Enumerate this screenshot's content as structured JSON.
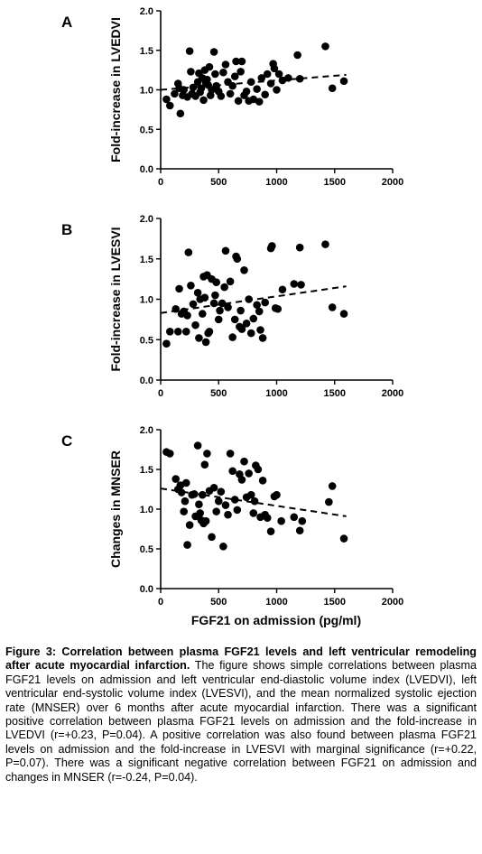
{
  "x_axis_label": "FGF21 on admission (pg/ml)",
  "caption": {
    "title": "Figure 3: Correlation between plasma FGF21 levels and left ventricular remodeling after acute myocardial infarction.",
    "body": " The figure shows simple correlations between plasma FGF21 levels on admission and left ventricular end-diastolic volume index (LVEDVI), left ventricular end-systolic volume index (LVESVI), and the mean normalized systolic ejection rate (MNSER) over 6 months after acute myocardial infarction. There was a significant positive correlation between plasma FGF21 levels on admission and the fold-increase in LVEDVI (r=+0.23, P=0.04).  A positive correlation was also found between plasma FGF21 levels on admission and the fold-increase in LVESVI with marginal significance (r=+0.22, P=0.07). There was a significant negative correlation between FGF21 on admission and changes in MNSER (r=-0.24, P=0.04)."
  },
  "chart_data": [
    {
      "type": "scatter",
      "panel": "A",
      "ylabel": "Fold-increase in LVEDVI",
      "xlim": [
        0,
        2000
      ],
      "ylim": [
        0,
        2.0
      ],
      "x_ticks": [
        "0",
        "500",
        "1000",
        "1500",
        "2000"
      ],
      "y_ticks": [
        "0.0",
        "0.5",
        "1.0",
        "1.5",
        "2.0"
      ],
      "trendline": {
        "style": "dashed",
        "from": [
          0,
          1.0
        ],
        "to": [
          1600,
          1.19
        ]
      },
      "points": [
        [
          50,
          0.88
        ],
        [
          80,
          0.8
        ],
        [
          120,
          0.95
        ],
        [
          150,
          1.08
        ],
        [
          160,
          1.02
        ],
        [
          170,
          0.7
        ],
        [
          190,
          0.93
        ],
        [
          200,
          1.0
        ],
        [
          230,
          0.91
        ],
        [
          250,
          1.49
        ],
        [
          260,
          1.23
        ],
        [
          270,
          0.95
        ],
        [
          280,
          1.03
        ],
        [
          300,
          0.92
        ],
        [
          320,
          1.1
        ],
        [
          330,
          1.21
        ],
        [
          340,
          0.97
        ],
        [
          350,
          1.02
        ],
        [
          360,
          1.15
        ],
        [
          370,
          0.87
        ],
        [
          380,
          1.25
        ],
        [
          390,
          1.09
        ],
        [
          400,
          1.13
        ],
        [
          410,
          1.06
        ],
        [
          420,
          1.29
        ],
        [
          430,
          0.93
        ],
        [
          440,
          1.0
        ],
        [
          460,
          1.48
        ],
        [
          470,
          1.2
        ],
        [
          480,
          1.05
        ],
        [
          500,
          0.98
        ],
        [
          520,
          0.92
        ],
        [
          540,
          1.22
        ],
        [
          560,
          1.32
        ],
        [
          580,
          1.1
        ],
        [
          600,
          0.95
        ],
        [
          620,
          1.05
        ],
        [
          640,
          1.17
        ],
        [
          650,
          1.36
        ],
        [
          670,
          0.86
        ],
        [
          690,
          1.23
        ],
        [
          700,
          1.36
        ],
        [
          720,
          0.93
        ],
        [
          740,
          0.98
        ],
        [
          760,
          0.86
        ],
        [
          780,
          1.1
        ],
        [
          800,
          0.88
        ],
        [
          830,
          1.01
        ],
        [
          850,
          0.85
        ],
        [
          870,
          1.15
        ],
        [
          900,
          0.94
        ],
        [
          920,
          1.2
        ],
        [
          950,
          1.08
        ],
        [
          970,
          1.33
        ],
        [
          980,
          1.27
        ],
        [
          1000,
          1.0
        ],
        [
          1020,
          1.2
        ],
        [
          1050,
          1.12
        ],
        [
          1100,
          1.15
        ],
        [
          1180,
          1.44
        ],
        [
          1200,
          1.14
        ],
        [
          1420,
          1.55
        ],
        [
          1480,
          1.02
        ],
        [
          1580,
          1.11
        ]
      ]
    },
    {
      "type": "scatter",
      "panel": "B",
      "ylabel": "Fold-increase in LVESVI",
      "xlim": [
        0,
        2000
      ],
      "ylim": [
        0,
        2.0
      ],
      "x_ticks": [
        "0",
        "500",
        "1000",
        "1500",
        "2000"
      ],
      "y_ticks": [
        "0.0",
        "0.5",
        "1.0",
        "1.5",
        "2.0"
      ],
      "trendline": {
        "style": "dashed",
        "from": [
          0,
          0.83
        ],
        "to": [
          1600,
          1.16
        ]
      },
      "points": [
        [
          50,
          0.45
        ],
        [
          80,
          0.6
        ],
        [
          130,
          0.88
        ],
        [
          150,
          0.6
        ],
        [
          160,
          1.13
        ],
        [
          180,
          0.82
        ],
        [
          200,
          0.85
        ],
        [
          220,
          0.6
        ],
        [
          230,
          0.8
        ],
        [
          240,
          1.58
        ],
        [
          260,
          1.17
        ],
        [
          280,
          0.94
        ],
        [
          300,
          0.68
        ],
        [
          320,
          1.08
        ],
        [
          330,
          0.52
        ],
        [
          340,
          1.0
        ],
        [
          360,
          0.82
        ],
        [
          370,
          1.28
        ],
        [
          380,
          1.02
        ],
        [
          390,
          0.47
        ],
        [
          400,
          1.3
        ],
        [
          410,
          0.58
        ],
        [
          420,
          0.6
        ],
        [
          440,
          1.25
        ],
        [
          460,
          0.95
        ],
        [
          470,
          1.05
        ],
        [
          480,
          1.21
        ],
        [
          500,
          0.75
        ],
        [
          510,
          0.86
        ],
        [
          530,
          0.95
        ],
        [
          550,
          1.15
        ],
        [
          560,
          1.6
        ],
        [
          580,
          0.9
        ],
        [
          600,
          1.22
        ],
        [
          620,
          0.53
        ],
        [
          640,
          0.75
        ],
        [
          650,
          1.53
        ],
        [
          660,
          1.5
        ],
        [
          680,
          0.66
        ],
        [
          690,
          0.86
        ],
        [
          700,
          0.63
        ],
        [
          720,
          1.36
        ],
        [
          740,
          0.7
        ],
        [
          760,
          1.0
        ],
        [
          780,
          0.58
        ],
        [
          800,
          0.76
        ],
        [
          830,
          0.93
        ],
        [
          850,
          0.85
        ],
        [
          860,
          0.62
        ],
        [
          880,
          0.52
        ],
        [
          900,
          0.96
        ],
        [
          950,
          1.63
        ],
        [
          960,
          1.66
        ],
        [
          990,
          0.89
        ],
        [
          1010,
          0.88
        ],
        [
          1050,
          1.12
        ],
        [
          1150,
          1.19
        ],
        [
          1200,
          1.64
        ],
        [
          1210,
          1.18
        ],
        [
          1420,
          1.68
        ],
        [
          1480,
          0.9
        ],
        [
          1580,
          0.82
        ]
      ]
    },
    {
      "type": "scatter",
      "panel": "C",
      "ylabel": "Changes in MNSER",
      "xlim": [
        0,
        2000
      ],
      "ylim": [
        0,
        2.0
      ],
      "x_ticks": [
        "0",
        "500",
        "1000",
        "1500",
        "2000"
      ],
      "y_ticks": [
        "0.0",
        "0.5",
        "1.0",
        "1.5",
        "2.0"
      ],
      "trendline": {
        "style": "dashed",
        "from": [
          0,
          1.26
        ],
        "to": [
          1600,
          0.91
        ]
      },
      "points": [
        [
          50,
          1.72
        ],
        [
          80,
          1.7
        ],
        [
          130,
          1.38
        ],
        [
          150,
          1.25
        ],
        [
          170,
          1.3
        ],
        [
          180,
          1.21
        ],
        [
          200,
          0.97
        ],
        [
          210,
          1.1
        ],
        [
          220,
          1.33
        ],
        [
          230,
          0.55
        ],
        [
          250,
          0.8
        ],
        [
          270,
          1.18
        ],
        [
          290,
          1.19
        ],
        [
          300,
          0.91
        ],
        [
          320,
          1.8
        ],
        [
          330,
          1.06
        ],
        [
          340,
          0.95
        ],
        [
          350,
          0.86
        ],
        [
          360,
          1.18
        ],
        [
          370,
          0.82
        ],
        [
          380,
          1.56
        ],
        [
          390,
          0.85
        ],
        [
          400,
          1.7
        ],
        [
          420,
          1.23
        ],
        [
          440,
          0.65
        ],
        [
          460,
          1.27
        ],
        [
          480,
          0.97
        ],
        [
          500,
          1.1
        ],
        [
          520,
          1.22
        ],
        [
          540,
          0.53
        ],
        [
          560,
          1.05
        ],
        [
          580,
          0.93
        ],
        [
          600,
          1.7
        ],
        [
          620,
          1.48
        ],
        [
          640,
          1.12
        ],
        [
          660,
          0.99
        ],
        [
          680,
          1.44
        ],
        [
          700,
          1.37
        ],
        [
          720,
          1.6
        ],
        [
          740,
          1.15
        ],
        [
          760,
          1.45
        ],
        [
          780,
          1.18
        ],
        [
          800,
          0.95
        ],
        [
          810,
          1.1
        ],
        [
          820,
          1.55
        ],
        [
          840,
          1.5
        ],
        [
          860,
          0.9
        ],
        [
          880,
          1.36
        ],
        [
          900,
          0.93
        ],
        [
          920,
          0.89
        ],
        [
          950,
          0.72
        ],
        [
          980,
          1.16
        ],
        [
          1000,
          1.18
        ],
        [
          1040,
          0.85
        ],
        [
          1150,
          0.9
        ],
        [
          1200,
          0.73
        ],
        [
          1220,
          0.85
        ],
        [
          1450,
          1.09
        ],
        [
          1480,
          1.29
        ],
        [
          1580,
          0.63
        ]
      ]
    }
  ]
}
